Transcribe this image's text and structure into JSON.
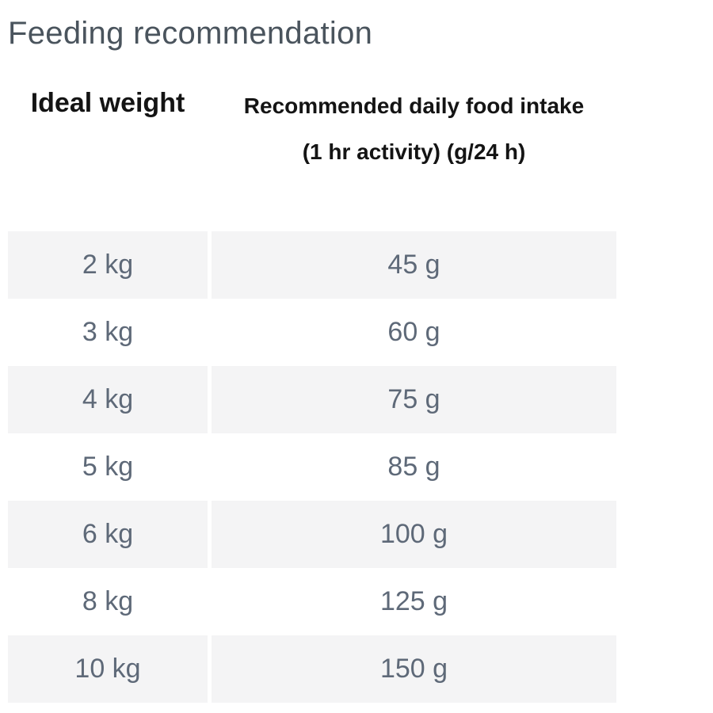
{
  "page": {
    "title": "Feeding recommendation"
  },
  "table": {
    "header": {
      "col1": "Ideal weight",
      "col2_line1": "Recommended daily food intake",
      "col2_line2": "(1 hr activity) (g/24 h)"
    },
    "rows": [
      {
        "weight": "2 kg",
        "intake": "45 g"
      },
      {
        "weight": "3 kg",
        "intake": "60 g"
      },
      {
        "weight": "4 kg",
        "intake": "75 g"
      },
      {
        "weight": "5 kg",
        "intake": "85 g"
      },
      {
        "weight": "6 kg",
        "intake": "100 g"
      },
      {
        "weight": "8 kg",
        "intake": "125 g"
      },
      {
        "weight": "10 kg",
        "intake": "150 g"
      }
    ]
  },
  "colors": {
    "title-color": "#4a545d",
    "header-color": "#141414",
    "cell-color": "#5e6978",
    "stripe-bg": "#f4f4f5",
    "page-bg": "#ffffff"
  }
}
